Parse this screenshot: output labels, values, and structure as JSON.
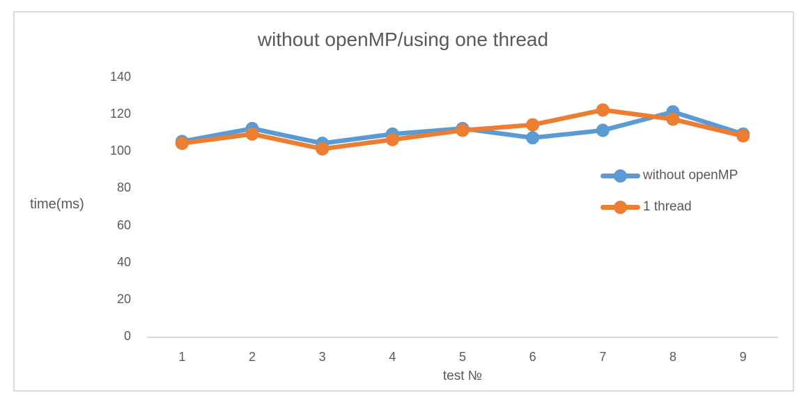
{
  "chart_data": {
    "type": "line",
    "title": "without openMP/using one thread",
    "xlabel": "test №",
    "ylabel": "time(ms)",
    "categories": [
      "1",
      "2",
      "3",
      "4",
      "5",
      "6",
      "7",
      "8",
      "9"
    ],
    "series": [
      {
        "name": "without openMP",
        "color": "#5B9BD5",
        "values": [
          105,
          112,
          104,
          109,
          112,
          107,
          111,
          121,
          109
        ]
      },
      {
        "name": "1 thread",
        "color": "#ED7D31",
        "values": [
          104,
          109,
          101,
          106,
          111,
          114,
          122,
          117,
          108
        ]
      }
    ],
    "ylim": [
      0,
      140
    ],
    "y_ticks": [
      0,
      20,
      40,
      60,
      80,
      100,
      120,
      140
    ],
    "grid": false,
    "legend_position": "right-middle",
    "axis_color": "#D9D9D9",
    "text_color": "#595959"
  }
}
